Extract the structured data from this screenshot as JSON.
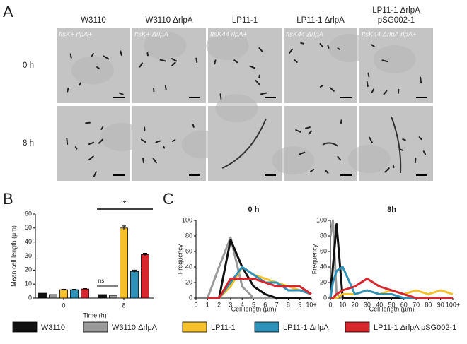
{
  "figure": {
    "panel_labels": [
      "A",
      "B",
      "C"
    ],
    "micrographs": {
      "columns": [
        "W3110",
        "W3110 ΔrlpA",
        "LP11-1",
        "LP11-1 ΔrlpA",
        "LP11-1 ΔrlpA pSG002-1"
      ],
      "genotypes": [
        "ftsK+ rlpA+",
        "ftsK+ ΔrlpA",
        "ftsK44 rlpA+",
        "ftsK44 ΔrlpA",
        "ftsK44 ΔrlpA rlpA+"
      ],
      "rows": [
        "0 h",
        "8 h"
      ]
    }
  },
  "chart_data": [
    {
      "type": "bar",
      "ylabel": "Mean cell length (µm)",
      "xlabel": "Time (h)",
      "categories": [
        "0",
        "8"
      ],
      "series": [
        {
          "name": "W3110",
          "color": "#111111",
          "values": [
            3.5,
            2.5
          ]
        },
        {
          "name": "W3110 ΔrlpA",
          "color": "#9a9a9a",
          "values": [
            2.5,
            2
          ]
        },
        {
          "name": "LP11-1",
          "color": "#f5c02a",
          "values": [
            6,
            50
          ],
          "errors": [
            0.3,
            1.5
          ]
        },
        {
          "name": "LP11-1 ΔrlpA",
          "color": "#2e92b8",
          "values": [
            6,
            19
          ],
          "errors": [
            0.3,
            1
          ]
        },
        {
          "name": "LP11-1 ΔrlpA pSG002-1",
          "color": "#d7262e",
          "values": [
            6.5,
            31
          ],
          "errors": [
            0.3,
            1
          ]
        }
      ],
      "ylim": [
        0,
        60
      ],
      "yticks": [
        0,
        10,
        20,
        30,
        40,
        50,
        60
      ],
      "annotations": [
        "ns",
        "*"
      ]
    },
    {
      "type": "line",
      "title": "0 h",
      "xlabel": "Cell length (µm)",
      "ylabel": "Frequency",
      "x": [
        1,
        2,
        3,
        4,
        5,
        6,
        7,
        8,
        9,
        10
      ],
      "series": [
        {
          "color": "#9a9a9a",
          "values": [
            0,
            40,
            78,
            15,
            0,
            0,
            0,
            0,
            0,
            0
          ]
        },
        {
          "color": "#111111",
          "values": [
            0,
            0,
            75,
            40,
            15,
            5,
            0,
            0,
            0,
            0
          ]
        },
        {
          "color": "#f5c02a",
          "values": [
            0,
            0,
            15,
            40,
            30,
            25,
            20,
            15,
            10,
            5
          ]
        },
        {
          "color": "#2e92b8",
          "values": [
            0,
            0,
            20,
            40,
            30,
            20,
            20,
            10,
            10,
            5
          ]
        },
        {
          "color": "#d7262e",
          "values": [
            0,
            0,
            25,
            25,
            25,
            20,
            15,
            15,
            15,
            5
          ]
        }
      ],
      "xlim": [
        0,
        10
      ],
      "xticks": [
        0,
        1,
        2,
        3,
        4,
        5,
        6,
        7,
        8,
        9,
        {
          "value": 10,
          "label": "10+"
        }
      ],
      "ylim": [
        0,
        100
      ],
      "yticks": [
        0,
        20,
        40,
        60,
        80,
        100
      ]
    },
    {
      "type": "line",
      "title": "8h",
      "xlabel": "Cell length (µm)",
      "ylabel": "Frequency",
      "x": [
        0,
        2,
        5,
        10,
        20,
        30,
        40,
        50,
        60,
        70,
        80,
        90,
        100
      ],
      "series": [
        {
          "color": "#9a9a9a",
          "values": [
            80,
            100,
            5,
            0,
            0,
            0,
            0,
            0,
            0,
            0,
            0,
            0,
            0
          ]
        },
        {
          "color": "#111111",
          "values": [
            0,
            40,
            95,
            0,
            0,
            0,
            0,
            0,
            0,
            0,
            0,
            0,
            0
          ]
        },
        {
          "color": "#f5c02a",
          "values": [
            0,
            0,
            0,
            5,
            5,
            10,
            5,
            10,
            5,
            10,
            5,
            10,
            5
          ]
        },
        {
          "color": "#2e92b8",
          "values": [
            0,
            20,
            35,
            40,
            5,
            10,
            5,
            5,
            0,
            0,
            0,
            0,
            0
          ]
        },
        {
          "color": "#d7262e",
          "values": [
            0,
            0,
            5,
            10,
            15,
            25,
            15,
            10,
            5,
            0,
            0,
            0,
            0
          ]
        }
      ],
      "xlim": [
        0,
        100
      ],
      "xticks": [
        0,
        10,
        20,
        30,
        40,
        50,
        60,
        70,
        80,
        90,
        {
          "value": 100,
          "label": "100+"
        }
      ],
      "ylim": [
        0,
        100
      ],
      "yticks": [
        0,
        20,
        40,
        60,
        80,
        100
      ]
    }
  ]
}
